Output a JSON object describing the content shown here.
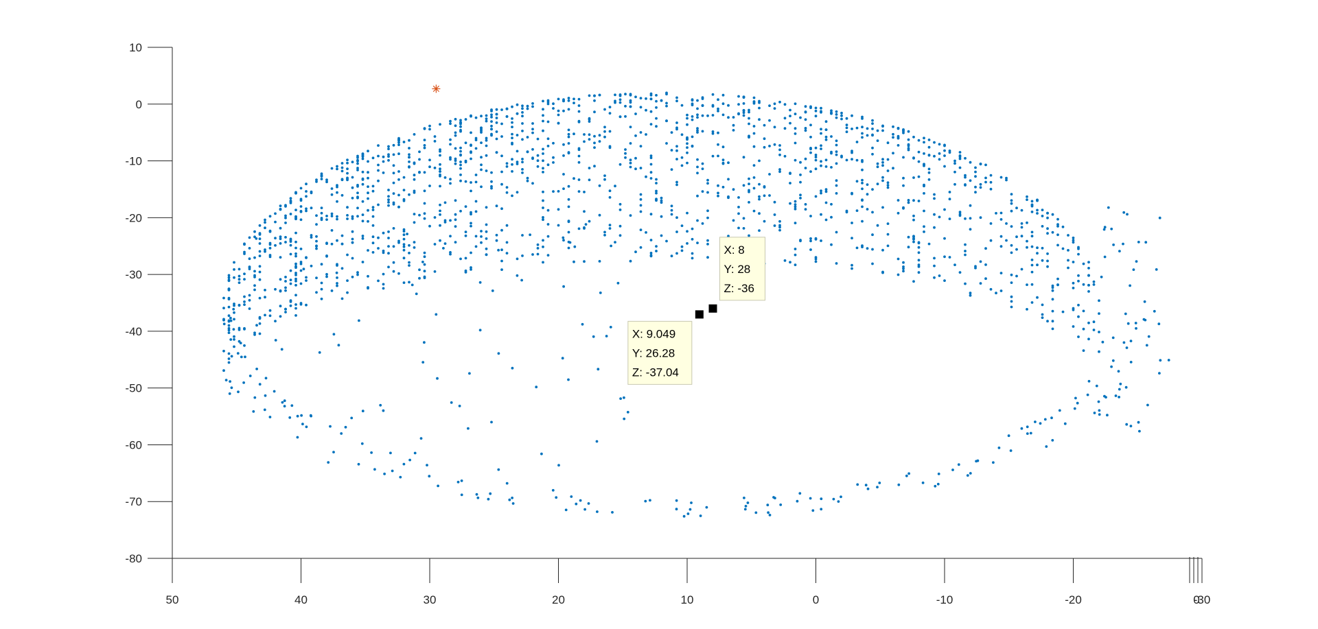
{
  "chart_data": {
    "type": "scatter",
    "title": "",
    "xlabel": "",
    "ylabel": "",
    "xlim": [
      50,
      -30
    ],
    "ylim": [
      -80,
      10
    ],
    "x_reversed": true,
    "grid": false,
    "legend": "none",
    "x_ticks": [
      "50",
      "40",
      "30",
      "20",
      "10",
      "0",
      "-10",
      "-20",
      "-30"
    ],
    "y_ticks": [
      "10",
      "0",
      "-10",
      "-20",
      "-30",
      "-40",
      "-50",
      "-60",
      "-70",
      "-80"
    ],
    "x_tick_values": [
      50,
      40,
      30,
      20,
      10,
      0,
      -10,
      -20,
      -30
    ],
    "y_tick_values": [
      10,
      0,
      -10,
      -20,
      -30,
      -40,
      -50,
      -60,
      -70,
      -80
    ],
    "depth_axis_tick_label": "0",
    "series": [
      {
        "marker": "dot",
        "color": "#0072BD",
        "upper_band": {
          "x_range": [
            46,
            -22
          ],
          "center_x": 12,
          "half_width": 34,
          "outer_y_left": -37,
          "outer_y_top": 2,
          "inner_y_top": -20,
          "inner_y_left": -46,
          "point_count": 1700
        },
        "lower_ring": {
          "center_x": 10,
          "center_y": -36,
          "radius_x": 36,
          "radius_y": 36,
          "point_count": 170
        }
      },
      {
        "marker": "asterisk",
        "color": "#D95319",
        "points": [
          [
            29.5,
            2.7
          ]
        ]
      }
    ],
    "highlighted_points": [
      [
        8.0,
        -36.0
      ],
      [
        9.049,
        -37.04
      ]
    ],
    "annotations": [
      {
        "lines": [
          "X: 8",
          "Y: 28",
          "Z: -36"
        ],
        "anchor_x": 8.0,
        "anchor_y": -36.0
      },
      {
        "lines": [
          "X: 9.049",
          "Y: 26.28",
          "Z: -37.04"
        ],
        "anchor_x": 9.049,
        "anchor_y": -37.04
      }
    ]
  }
}
